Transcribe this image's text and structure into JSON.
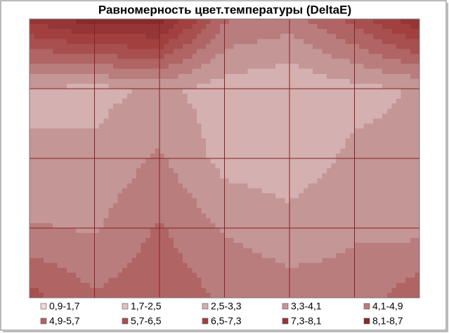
{
  "chart_data": {
    "type": "contour",
    "title": "Равномерность цвет.температуры (DeltaE)",
    "z": [
      [
        7.5,
        8.6,
        8.6,
        5.0,
        4.5,
        6.0,
        8.0
      ],
      [
        3.3,
        3.0,
        3.5,
        2.9,
        2.6,
        3.0,
        3.4
      ],
      [
        3.3,
        3.5,
        4.2,
        3.0,
        2.8,
        3.5,
        3.5
      ],
      [
        4.2,
        4.0,
        5.0,
        4.0,
        3.6,
        4.0,
        3.8
      ],
      [
        6.0,
        5.0,
        5.5,
        4.8,
        4.5,
        4.4,
        5.5
      ]
    ],
    "bands": [
      {
        "label": "0,9-1,7",
        "from": 0.9,
        "to": 1.7,
        "color": "#eed8d8"
      },
      {
        "label": "1,7-2,5",
        "from": 1.7,
        "to": 2.5,
        "color": "#e2c2c2"
      },
      {
        "label": "2,5-3,3",
        "from": 2.5,
        "to": 3.3,
        "color": "#d4b0b0"
      },
      {
        "label": "3,3-4,1",
        "from": 3.3,
        "to": 4.1,
        "color": "#c49696"
      },
      {
        "label": "4,1-4,9",
        "from": 4.1,
        "to": 4.9,
        "color": "#b97d7d"
      },
      {
        "label": "4,9-5,7",
        "from": 4.9,
        "to": 5.7,
        "color": "#b06464"
      },
      {
        "label": "5,7-6,5",
        "from": 5.7,
        "to": 6.5,
        "color": "#a84f4f"
      },
      {
        "label": "6,5-7,3",
        "from": 6.5,
        "to": 7.3,
        "color": "#a24040"
      },
      {
        "label": "7,3-8,1",
        "from": 7.3,
        "to": 8.1,
        "color": "#953535"
      },
      {
        "label": "8,1-8,7",
        "from": 8.1,
        "to": 8.7,
        "color": "#882a2a"
      }
    ],
    "grid": true
  }
}
